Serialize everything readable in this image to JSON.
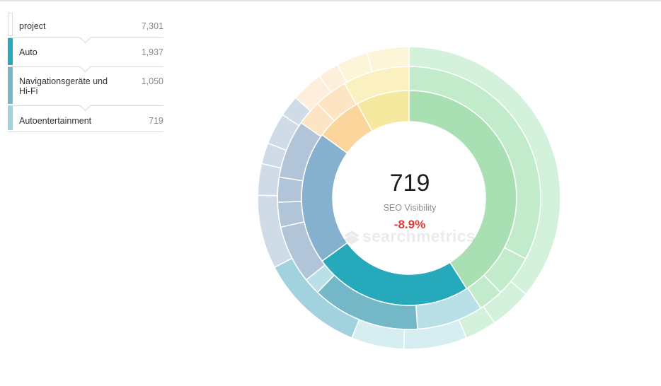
{
  "breadcrumb": {
    "items": [
      {
        "label": "project",
        "value": "7,301",
        "color": "#ffffff"
      },
      {
        "label": "Auto",
        "value": "1,937",
        "color": "#26a9bb"
      },
      {
        "label": "Navigationsgeräte und Hi-Fi",
        "value": "1,050",
        "color": "#74b8c8"
      },
      {
        "label": "Autoentertainment",
        "value": "719",
        "color": "#a2d2dd"
      }
    ]
  },
  "center": {
    "value": "719",
    "label": "SEO Visibility",
    "change": "-8.9%"
  },
  "watermark": {
    "text": "searchmetrics"
  },
  "colors": {
    "green": "#a8e0b4",
    "teal": "#26a9bb",
    "blue": "#85b1cf",
    "yellow": "#f5e9a0",
    "orange": "#fbd59c",
    "negative": "#e53935"
  },
  "chart_data": {
    "type": "sunburst",
    "title": "",
    "rings": [
      {
        "level": 1,
        "segments": [
          {
            "group": "green",
            "value": 41
          },
          {
            "group": "teal",
            "value": 24
          },
          {
            "group": "blue",
            "value": 20
          },
          {
            "group": "orange",
            "value": 7
          },
          {
            "group": "yellow",
            "value": 8
          }
        ]
      },
      {
        "level": 2,
        "segments": [
          {
            "group": "green",
            "value": 32
          },
          {
            "group": "green",
            "value": 5
          },
          {
            "group": "green",
            "value": 3
          },
          {
            "group": "teal",
            "value": 8
          },
          {
            "group": "teal",
            "value": 13
          },
          {
            "group": "teal",
            "value": 2
          },
          {
            "group": "blue",
            "value": 7
          },
          {
            "group": "blue",
            "value": 3
          },
          {
            "group": "blue",
            "value": 3
          },
          {
            "group": "blue",
            "value": 7
          },
          {
            "group": "orange",
            "value": 3
          },
          {
            "group": "orange",
            "value": 4
          },
          {
            "group": "yellow",
            "value": 8
          }
        ]
      },
      {
        "level": 3,
        "segments": [
          {
            "group": "green",
            "value": 32
          },
          {
            "group": "green",
            "value": 4
          },
          {
            "group": "green",
            "value": 3
          },
          {
            "group": "teal",
            "value": 6
          },
          {
            "group": "teal",
            "value": 5
          },
          {
            "group": "teal",
            "value": 10
          },
          {
            "group": "blue",
            "value": 7
          },
          {
            "group": "blue",
            "value": 3
          },
          {
            "group": "blue",
            "value": 2
          },
          {
            "group": "blue",
            "value": 3
          },
          {
            "group": "blue",
            "value": 2
          },
          {
            "group": "orange",
            "value": 3
          },
          {
            "group": "orange",
            "value": 2
          },
          {
            "group": "yellow",
            "value": 3
          },
          {
            "group": "yellow",
            "value": 4
          }
        ]
      }
    ]
  }
}
